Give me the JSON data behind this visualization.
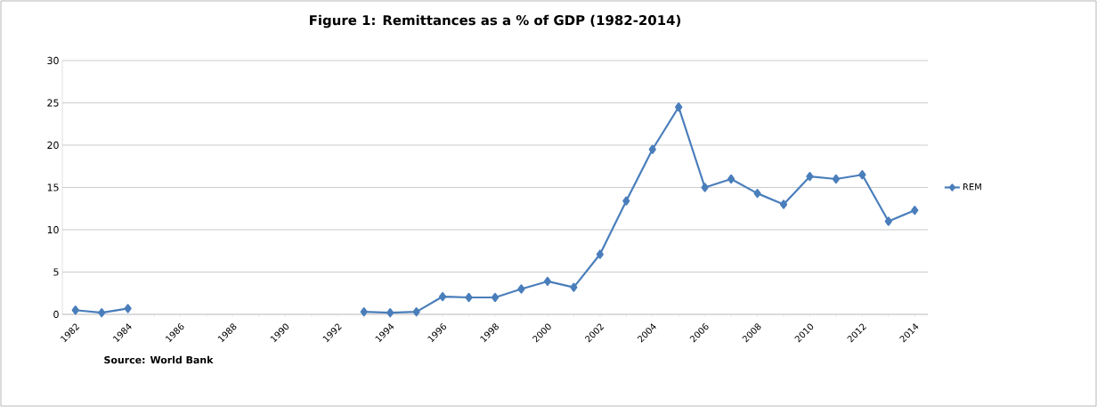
{
  "chart_data": {
    "type": "line",
    "title": "Figure 1: Remittances as a % of GDP (1982-2014)",
    "categories": [
      "1982",
      null,
      "1984",
      null,
      "1986",
      null,
      "1988",
      null,
      "1990",
      null,
      "1992",
      null,
      "1994",
      null,
      "1996",
      null,
      "1998",
      null,
      "2000",
      null,
      "2002",
      null,
      "2004",
      null,
      "2006",
      null,
      "2008",
      null,
      "2010",
      null,
      "2012",
      null,
      "2014"
    ],
    "series": [
      {
        "name": "REM",
        "color": "#4a7ebb",
        "values": [
          0.5,
          0.2,
          0.7,
          null,
          null,
          null,
          null,
          null,
          null,
          null,
          null,
          0.3,
          0.2,
          0.3,
          2.1,
          2.0,
          2.0,
          3.0,
          3.9,
          3.2,
          7.1,
          13.4,
          19.5,
          24.5,
          15.0,
          16.0,
          14.3,
          13.0,
          16.3,
          16.0,
          16.5,
          11.0,
          12.3
        ]
      }
    ],
    "ylim": [
      0,
      30
    ],
    "yticks": [
      0,
      5,
      10,
      15,
      20,
      25,
      30
    ],
    "grid": "y",
    "legend": "right",
    "marker": "diamond",
    "line_style": "solid",
    "annotations": [
      "Source: World Bank"
    ]
  }
}
